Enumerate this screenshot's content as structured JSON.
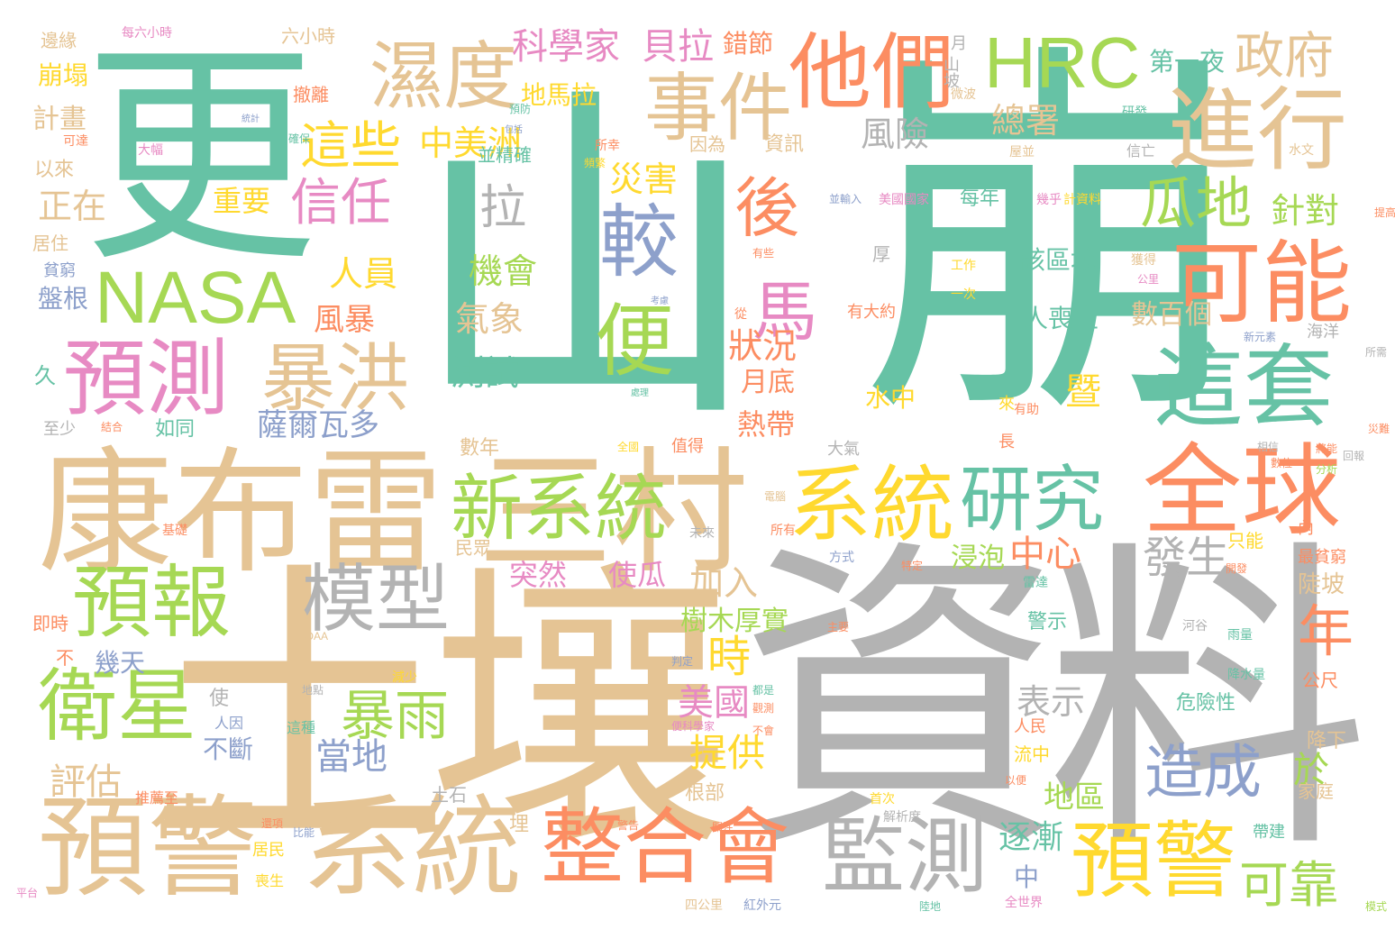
{
  "palette": {
    "teal": "#66c2a5",
    "orange": "#fc8d62",
    "blue": "#8da0cb",
    "pink": "#e78ac3",
    "green": "#a6d854",
    "yellow": "#ffd92f",
    "tan": "#e5c494",
    "grey": "#b3b3b3"
  },
  "words": [
    {
      "text": "崩",
      "color": "teal"
    },
    {
      "text": "山",
      "color": "teal"
    },
    {
      "text": "更",
      "color": "teal"
    },
    {
      "text": "資料",
      "color": "grey"
    },
    {
      "text": "土壤",
      "color": "tan"
    },
    {
      "text": "康布雷",
      "color": "tan"
    },
    {
      "text": "三村",
      "color": "tan"
    },
    {
      "text": "系統",
      "color": "tan"
    },
    {
      "text": "預警",
      "color": "tan"
    },
    {
      "text": "整合會",
      "color": "orange"
    },
    {
      "text": "監測",
      "color": "grey"
    },
    {
      "text": "預警",
      "color": "yellow"
    },
    {
      "text": "全球",
      "color": "orange"
    },
    {
      "text": "系統",
      "color": "yellow"
    },
    {
      "text": "研究",
      "color": "teal"
    },
    {
      "text": "新系統",
      "color": "green"
    },
    {
      "text": "這套",
      "color": "teal"
    },
    {
      "text": "可能",
      "color": "orange"
    },
    {
      "text": "進行",
      "color": "tan"
    },
    {
      "text": "HRC",
      "color": "green"
    },
    {
      "text": "他們",
      "color": "orange"
    },
    {
      "text": "事件",
      "color": "tan"
    },
    {
      "text": "濕度",
      "color": "tan"
    },
    {
      "text": "NASA",
      "color": "green"
    },
    {
      "text": "預測",
      "color": "pink"
    },
    {
      "text": "暴洪",
      "color": "tan"
    },
    {
      "text": "預報",
      "color": "green"
    },
    {
      "text": "模型",
      "color": "grey"
    },
    {
      "text": "衛星",
      "color": "green"
    },
    {
      "text": "暴雨",
      "color": "green"
    },
    {
      "text": "造成",
      "color": "blue"
    },
    {
      "text": "較",
      "color": "blue"
    },
    {
      "text": "便",
      "color": "green"
    },
    {
      "text": "後",
      "color": "orange"
    },
    {
      "text": "馬",
      "color": "pink"
    },
    {
      "text": "政府",
      "color": "tan"
    },
    {
      "text": "瓜地",
      "color": "green"
    },
    {
      "text": "可靠",
      "color": "green"
    },
    {
      "text": "這些",
      "color": "yellow"
    },
    {
      "text": "信任",
      "color": "pink"
    },
    {
      "text": "拉",
      "color": "grey"
    },
    {
      "text": "科學家",
      "color": "pink"
    },
    {
      "text": "貝拉",
      "color": "pink"
    },
    {
      "text": "中美洲",
      "color": "yellow"
    },
    {
      "text": "災害",
      "color": "yellow"
    },
    {
      "text": "風險",
      "color": "grey"
    },
    {
      "text": "總署",
      "color": "tan"
    },
    {
      "text": "年",
      "color": "orange"
    },
    {
      "text": "發生",
      "color": "grey"
    },
    {
      "text": "中心",
      "color": "orange"
    },
    {
      "text": "時",
      "color": "yellow"
    },
    {
      "text": "美國",
      "color": "pink"
    },
    {
      "text": "提供",
      "color": "yellow"
    },
    {
      "text": "當地",
      "color": "blue"
    },
    {
      "text": "評估",
      "color": "tan"
    },
    {
      "text": "人員",
      "color": "yellow"
    },
    {
      "text": "機會",
      "color": "green"
    },
    {
      "text": "氣象",
      "color": "tan"
    },
    {
      "text": "測試",
      "color": "teal"
    },
    {
      "text": "狀況",
      "color": "orange"
    },
    {
      "text": "薩爾瓦多",
      "color": "blue"
    },
    {
      "text": "加入",
      "color": "tan"
    },
    {
      "text": "表示",
      "color": "grey"
    },
    {
      "text": "針對",
      "color": "green"
    },
    {
      "text": "正在",
      "color": "tan"
    },
    {
      "text": "重要",
      "color": "yellow"
    },
    {
      "text": "風暴",
      "color": "orange"
    },
    {
      "text": "第一夜",
      "color": "teal"
    },
    {
      "text": "地馬拉",
      "color": "yellow"
    },
    {
      "text": "錯節",
      "color": "orange"
    },
    {
      "text": "暨",
      "color": "yellow"
    },
    {
      "text": "於",
      "color": "green"
    },
    {
      "text": "逐漸",
      "color": "teal"
    },
    {
      "text": "地區",
      "color": "green"
    },
    {
      "text": "浸泡",
      "color": "green"
    },
    {
      "text": "突然",
      "color": "pink"
    },
    {
      "text": "使瓜",
      "color": "pink"
    },
    {
      "text": "樹木厚實",
      "color": "green"
    },
    {
      "text": "熱帶",
      "color": "orange"
    },
    {
      "text": "月底",
      "color": "orange"
    },
    {
      "text": "數百個",
      "color": "tan"
    },
    {
      "text": "人喪生",
      "color": "teal"
    },
    {
      "text": "該區域",
      "color": "teal"
    },
    {
      "text": "水中",
      "color": "yellow"
    },
    {
      "text": "幾天",
      "color": "blue"
    },
    {
      "text": "不斷",
      "color": "blue"
    },
    {
      "text": "崩塌",
      "color": "yellow"
    },
    {
      "text": "計畫",
      "color": "tan"
    },
    {
      "text": "盤根",
      "color": "blue"
    },
    {
      "text": "邊緣",
      "color": "tan"
    },
    {
      "text": "六小時",
      "color": "tan"
    },
    {
      "text": "每六小時",
      "color": "pink"
    },
    {
      "text": "撤離",
      "color": "orange"
    },
    {
      "text": "資訊",
      "color": "tan"
    },
    {
      "text": "因為",
      "color": "tan"
    },
    {
      "text": "並精確",
      "color": "teal"
    },
    {
      "text": "以來",
      "color": "tan"
    },
    {
      "text": "居住",
      "color": "tan"
    },
    {
      "text": "貧窮",
      "color": "blue"
    },
    {
      "text": "久",
      "color": "teal"
    },
    {
      "text": "至少",
      "color": "grey"
    },
    {
      "text": "如同",
      "color": "teal"
    },
    {
      "text": "數年",
      "color": "tan"
    },
    {
      "text": "即時",
      "color": "orange"
    },
    {
      "text": "不",
      "color": "orange"
    },
    {
      "text": "使",
      "color": "grey"
    },
    {
      "text": "人因",
      "color": "blue"
    },
    {
      "text": "這種",
      "color": "teal"
    },
    {
      "text": "推薦至",
      "color": "orange"
    },
    {
      "text": "土石",
      "color": "grey"
    },
    {
      "text": "根部",
      "color": "tan"
    },
    {
      "text": "埋",
      "color": "tan"
    },
    {
      "text": "民眾",
      "color": "tan"
    },
    {
      "text": "警示",
      "color": "teal"
    },
    {
      "text": "人民",
      "color": "orange"
    },
    {
      "text": "流中",
      "color": "yellow"
    },
    {
      "text": "中",
      "color": "blue"
    },
    {
      "text": "陡坡",
      "color": "tan"
    },
    {
      "text": "只能",
      "color": "yellow"
    },
    {
      "text": "最貧窮",
      "color": "orange"
    },
    {
      "text": "危險性",
      "color": "teal"
    },
    {
      "text": "降下",
      "color": "tan"
    },
    {
      "text": "公尺",
      "color": "orange"
    },
    {
      "text": "家庭",
      "color": "tan"
    },
    {
      "text": "帶建",
      "color": "teal"
    },
    {
      "text": "海洋",
      "color": "grey"
    },
    {
      "text": "每年",
      "color": "teal"
    },
    {
      "text": "厚",
      "color": "grey"
    },
    {
      "text": "有大約",
      "color": "orange"
    },
    {
      "text": "月",
      "color": "grey"
    },
    {
      "text": "山坡",
      "color": "grey"
    },
    {
      "text": "長",
      "color": "orange"
    },
    {
      "text": "來",
      "color": "yellow"
    },
    {
      "text": "大氣",
      "color": "grey"
    },
    {
      "text": "值得",
      "color": "orange"
    },
    {
      "text": "內",
      "color": "orange"
    },
    {
      "text": "NOAA",
      "color": "tan"
    },
    {
      "text": "減少",
      "color": "yellow"
    },
    {
      "text": "微波",
      "color": "tan"
    },
    {
      "text": "工作",
      "color": "yellow"
    },
    {
      "text": "一次",
      "color": "yellow"
    },
    {
      "text": "研發",
      "color": "teal"
    },
    {
      "text": "信亡",
      "color": "grey"
    },
    {
      "text": "水文",
      "color": "tan"
    },
    {
      "text": "屋並",
      "color": "tan"
    },
    {
      "text": "幾乎",
      "color": "pink"
    },
    {
      "text": "計資料",
      "color": "yellow"
    },
    {
      "text": "美國國家",
      "color": "pink"
    },
    {
      "text": "並輸入",
      "color": "blue"
    },
    {
      "text": "獲得",
      "color": "tan"
    },
    {
      "text": "公里",
      "color": "pink"
    },
    {
      "text": "新元素",
      "color": "blue"
    },
    {
      "text": "有助",
      "color": "orange"
    },
    {
      "text": "雷達",
      "color": "teal"
    },
    {
      "text": "河谷",
      "color": "grey"
    },
    {
      "text": "雨量",
      "color": "teal"
    },
    {
      "text": "降水量",
      "color": "teal"
    },
    {
      "text": "四公里",
      "color": "tan"
    },
    {
      "text": "紅外元",
      "color": "blue"
    },
    {
      "text": "全世界",
      "color": "pink"
    },
    {
      "text": "解析度",
      "color": "grey"
    },
    {
      "text": "首次",
      "color": "yellow"
    },
    {
      "text": "關注",
      "color": "orange"
    },
    {
      "text": "還項",
      "color": "orange"
    },
    {
      "text": "居民",
      "color": "yellow"
    },
    {
      "text": "喪生",
      "color": "yellow"
    },
    {
      "text": "比能",
      "color": "blue"
    },
    {
      "text": "基礎",
      "color": "orange"
    },
    {
      "text": "所有",
      "color": "orange"
    },
    {
      "text": "未來",
      "color": "grey"
    },
    {
      "text": "方式",
      "color": "blue"
    },
    {
      "text": "特定",
      "color": "orange"
    },
    {
      "text": "開發",
      "color": "orange"
    },
    {
      "text": "可達",
      "color": "orange"
    },
    {
      "text": "大幅",
      "color": "pink"
    },
    {
      "text": "所幸",
      "color": "orange"
    },
    {
      "text": "統計",
      "color": "blue"
    },
    {
      "text": "包括",
      "color": "blue"
    },
    {
      "text": "有些",
      "color": "orange"
    },
    {
      "text": "考慮",
      "color": "blue"
    },
    {
      "text": "從",
      "color": "orange"
    },
    {
      "text": "處理",
      "color": "teal"
    },
    {
      "text": "便科學家",
      "color": "pink"
    },
    {
      "text": "不會",
      "color": "orange"
    },
    {
      "text": "判定",
      "color": "blue"
    },
    {
      "text": "都是",
      "color": "teal"
    },
    {
      "text": "觀測",
      "color": "orange"
    },
    {
      "text": "結合",
      "color": "orange"
    },
    {
      "text": "確保",
      "color": "teal"
    },
    {
      "text": "預防",
      "color": "teal"
    },
    {
      "text": "頻繁",
      "color": "yellow"
    },
    {
      "text": "主要",
      "color": "orange"
    },
    {
      "text": "地點",
      "color": "grey"
    },
    {
      "text": "電腦",
      "color": "tan"
    },
    {
      "text": "分析",
      "color": "green"
    },
    {
      "text": "數位",
      "color": "orange"
    },
    {
      "text": "將能",
      "color": "orange"
    },
    {
      "text": "回報",
      "color": "grey"
    },
    {
      "text": "所需",
      "color": "grey"
    },
    {
      "text": "以便",
      "color": "orange"
    },
    {
      "text": "全國",
      "color": "yellow"
    },
    {
      "text": "警告",
      "color": "orange"
    },
    {
      "text": "相信",
      "color": "grey"
    },
    {
      "text": "災難",
      "color": "orange"
    },
    {
      "text": "提高",
      "color": "orange"
    },
    {
      "text": "陸地",
      "color": "teal"
    },
    {
      "text": "模式",
      "color": "green"
    },
    {
      "text": "平台",
      "color": "pink"
    },
    {
      "text": "國家",
      "color": "pink"
    }
  ]
}
